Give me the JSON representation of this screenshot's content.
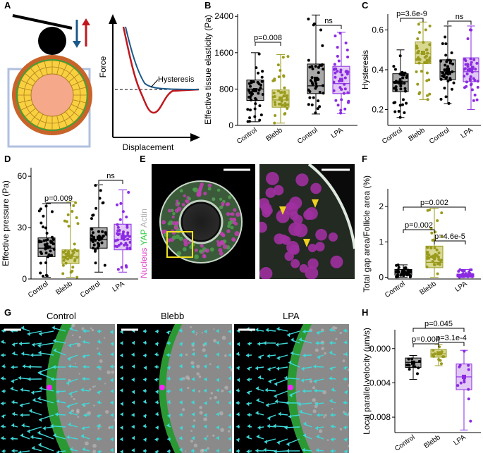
{
  "panels": {
    "A": {
      "label": "A",
      "xlabel": "Displacement",
      "ylabel": "Force",
      "annotation": "Hysteresis"
    },
    "B": {
      "label": "B"
    },
    "C": {
      "label": "C"
    },
    "D": {
      "label": "D"
    },
    "E": {
      "label": "E",
      "legend": [
        {
          "text": "Nucleus",
          "color": "#e040c8"
        },
        {
          "text": "YAP",
          "color": "#2ecc40"
        },
        {
          "text": "Actin",
          "color": "#b0b0b0"
        }
      ]
    },
    "F": {
      "label": "F"
    },
    "G": {
      "label": "G",
      "titles": [
        "Control",
        "Blebb",
        "LPA"
      ]
    },
    "H": {
      "label": "H"
    }
  },
  "colors": {
    "control": "#000000",
    "blebb": "#9a9a1e",
    "lpa": "#8a2be2",
    "arrow": "#3fd8d8",
    "magenta": "#ff20ff",
    "yellow": "#f0d020"
  },
  "chart_data": [
    {
      "id": "B",
      "type": "box",
      "ylabel": "Effective tissue elasticity (Pa)",
      "yticks": [
        0,
        800,
        1600,
        2400
      ],
      "ylim": [
        0,
        2450
      ],
      "categories": [
        "Control",
        "Blebb",
        "Control",
        "LPA"
      ],
      "boxes": [
        {
          "q1": 550,
          "median": 800,
          "q3": 1000,
          "min": 80,
          "max": 1600
        },
        {
          "q1": 400,
          "median": 560,
          "q3": 780,
          "min": 50,
          "max": 1560
        },
        {
          "q1": 700,
          "median": 870,
          "q3": 1350,
          "min": 250,
          "max": 2430
        },
        {
          "q1": 700,
          "median": 920,
          "q3": 1300,
          "min": 260,
          "max": 2050
        }
      ],
      "annotations": [
        {
          "text": "p=0.008",
          "pair": [
            0,
            1
          ]
        },
        {
          "text": "ns",
          "pair": [
            2,
            3
          ]
        }
      ]
    },
    {
      "id": "C",
      "type": "box",
      "ylabel": "Hysteresis",
      "yticks": [
        0.2,
        0.4,
        0.6
      ],
      "ylim": [
        0.12,
        0.68
      ],
      "categories": [
        "Control",
        "Blebb",
        "Control",
        "LPA"
      ],
      "boxes": [
        {
          "q1": 0.29,
          "median": 0.34,
          "q3": 0.38,
          "min": 0.16,
          "max": 0.5
        },
        {
          "q1": 0.43,
          "median": 0.48,
          "q3": 0.54,
          "min": 0.25,
          "max": 0.64
        },
        {
          "q1": 0.35,
          "median": 0.39,
          "q3": 0.45,
          "min": 0.23,
          "max": 0.62
        },
        {
          "q1": 0.34,
          "median": 0.39,
          "q3": 0.46,
          "min": 0.2,
          "max": 0.62
        }
      ],
      "annotations": [
        {
          "text": "p=3.6e-9",
          "pair": [
            0,
            1
          ]
        },
        {
          "text": "ns",
          "pair": [
            2,
            3
          ]
        }
      ]
    },
    {
      "id": "D",
      "type": "box",
      "ylabel": "Effective pressure (Pa)",
      "yticks": [
        0,
        30,
        60
      ],
      "ylim": [
        0,
        65
      ],
      "categories": [
        "Control",
        "Blebb",
        "Control",
        "LPA"
      ],
      "boxes": [
        {
          "q1": 13,
          "median": 18,
          "q3": 24,
          "min": 1,
          "max": 44
        },
        {
          "q1": 9,
          "median": 13,
          "q3": 17,
          "min": 1,
          "max": 45
        },
        {
          "q1": 18,
          "median": 23,
          "q3": 30,
          "min": 4,
          "max": 55
        },
        {
          "q1": 17,
          "median": 23,
          "q3": 32,
          "min": 4,
          "max": 52
        }
      ],
      "annotations": [
        {
          "text": "p=0.009",
          "pair": [
            0,
            1
          ]
        },
        {
          "text": "ns",
          "pair": [
            2,
            3
          ]
        }
      ]
    },
    {
      "id": "F",
      "type": "box",
      "ylabel": "Total gap area/Follicle area (%)",
      "yticks": [
        0,
        1,
        2
      ],
      "ylim": [
        -0.05,
        2.5
      ],
      "categories": [
        "Control",
        "Blebb",
        "LPA"
      ],
      "boxes": [
        {
          "q1": 0.06,
          "median": 0.12,
          "q3": 0.22,
          "min": 0,
          "max": 0.35
        },
        {
          "q1": 0.27,
          "median": 0.42,
          "q3": 0.88,
          "min": 0,
          "max": 1.95
        },
        {
          "q1": 0.01,
          "median": 0.04,
          "q3": 0.09,
          "min": 0,
          "max": 0.22
        }
      ],
      "annotations": [
        {
          "text": "p=0.002",
          "pair": [
            0,
            2
          ]
        },
        {
          "text": "p=0.002",
          "pair": [
            0,
            1
          ]
        },
        {
          "text": "p=4.6e-5",
          "pair": [
            1,
            2
          ]
        }
      ]
    },
    {
      "id": "H",
      "type": "box",
      "ylabel": "Local parallel velocity (µm/s)",
      "yticks": [
        0.0,
        -0.004,
        -0.008
      ],
      "ylim": [
        -0.0098,
        0.0022
      ],
      "categories": [
        "Control",
        "Blebb",
        "LPA"
      ],
      "boxes": [
        {
          "q1": -0.0022,
          "median": -0.0016,
          "q3": -0.0011,
          "min": -0.0036,
          "max": -0.0008
        },
        {
          "q1": -0.001,
          "median": -0.0006,
          "q3": -0.0001,
          "min": -0.002,
          "max": 0.0005
        },
        {
          "q1": -0.0048,
          "median": -0.0033,
          "q3": -0.0018,
          "min": -0.0095,
          "max": -0.0002
        }
      ],
      "annotations": [
        {
          "text": "p=0.045",
          "pair": [
            0,
            2
          ]
        },
        {
          "text": "p=0.004",
          "pair": [
            0,
            1
          ]
        },
        {
          "text": "p=3.1e-4",
          "pair": [
            1,
            2
          ]
        }
      ]
    }
  ]
}
